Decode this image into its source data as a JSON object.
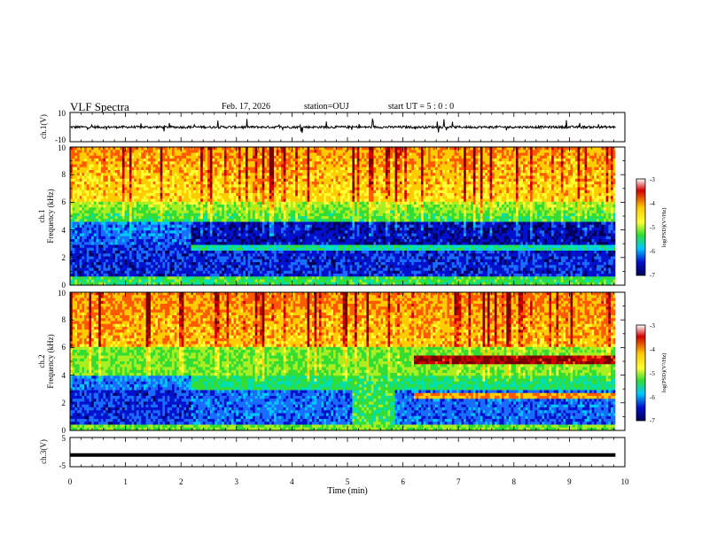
{
  "header": {
    "title": "VLF Spectra",
    "date": "Feb. 17, 2026",
    "station": "station=OUJ",
    "start": "start  UT =  5 : 0  : 0"
  },
  "chart_data": [
    {
      "type": "line",
      "id": "ch1-waveform",
      "ylabel": "ch.1(V)",
      "ylim": [
        -10,
        10
      ],
      "yticks": [
        "10",
        "-10"
      ],
      "xlim": [
        0,
        10
      ],
      "data_end_min": 9.83,
      "baseline": 0,
      "description_series": "noisy waveform around 0 V with spikes up to about +/-5 V"
    },
    {
      "type": "heatmap",
      "id": "ch1-spectrogram",
      "ylabel": "ch.1 Frequency (kHz)",
      "ylim": [
        0,
        10
      ],
      "yticks": [
        "0",
        "2",
        "4",
        "6",
        "8",
        "10"
      ],
      "xlim": [
        0,
        10
      ],
      "data_end_min": 9.83,
      "colorbar": {
        "label": "log(PSD)(V²/Hz)",
        "range": [
          -7,
          -3
        ],
        "ticks": [
          "-3",
          "-4",
          "-5",
          "-6",
          "-7"
        ]
      },
      "regime_changes_min": [
        2.2,
        6.2
      ]
    },
    {
      "type": "heatmap",
      "id": "ch2-spectrogram",
      "ylabel": "ch.2 Frequency (kHz)",
      "ylim": [
        0,
        10
      ],
      "yticks": [
        "0",
        "2",
        "4",
        "6",
        "8",
        "10"
      ],
      "xlim": [
        0,
        10
      ],
      "data_end_min": 9.83,
      "colorbar": {
        "label": "log(PSD)(V²/Hz)",
        "range": [
          -7,
          -3
        ],
        "ticks": [
          "-3",
          "-4",
          "-5",
          "-6",
          "-7"
        ]
      },
      "regime_changes_min": [
        2.2,
        5.1,
        6.2
      ],
      "narrowband_lines_khz": [
        5.1,
        2.5
      ]
    },
    {
      "type": "line",
      "id": "ch3-waveform",
      "ylabel": "ch.3(V)",
      "ylim": [
        -5,
        5
      ],
      "yticks": [
        "5",
        "-5"
      ],
      "xlim": [
        0,
        10
      ],
      "data_end_min": 9.83,
      "baseline": -1,
      "xlabel": "Time  (min)",
      "xticks": [
        "0",
        "1",
        "2",
        "3",
        "4",
        "5",
        "6",
        "7",
        "8",
        "9",
        "10"
      ]
    }
  ],
  "colors": {
    "axis": "#000000",
    "colormap": [
      "#7a0000",
      "#d00000",
      "#ff5a00",
      "#ffcc00",
      "#ffff33",
      "#aaee22",
      "#33dd33",
      "#00e0b0",
      "#00c8ff",
      "#1a6cff",
      "#0010cc",
      "#00005a"
    ]
  }
}
